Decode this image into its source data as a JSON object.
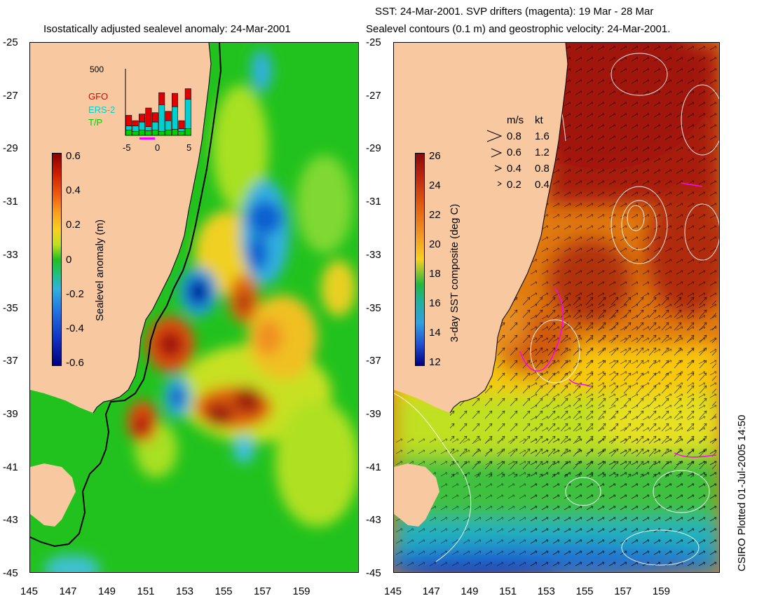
{
  "left_panel": {
    "title": "Isostatically adjusted sealevel anomaly: 24-Mar-2001",
    "lat_ticks": [
      "-25",
      "-27",
      "-29",
      "-31",
      "-33",
      "-35",
      "-37",
      "-39",
      "-41",
      "-43",
      "-45"
    ],
    "lon_ticks": [
      "145",
      "147",
      "149",
      "151",
      "153",
      "155",
      "157",
      "159"
    ],
    "colorbar": {
      "label": "Sealevel anomaly (m)",
      "ticks": [
        "0.6",
        "0.4",
        "0.2",
        "0",
        "-0.2",
        "-0.4",
        "-0.6"
      ]
    },
    "inset": {
      "ymax_label": "500",
      "legend": [
        "GFO",
        "ERS-2",
        "T/P"
      ],
      "legend_colors": [
        "#e00000",
        "#00d0d0",
        "#00d000"
      ],
      "x_ticks": [
        "-5",
        "0",
        "5"
      ],
      "bars": [
        {
          "tp": 40,
          "ers": 30,
          "gfo": 80
        },
        {
          "tp": 30,
          "ers": 40,
          "gfo": 40
        },
        {
          "tp": 40,
          "ers": 60,
          "gfo": 60
        },
        {
          "tp": 35,
          "ers": 30,
          "gfo": 140
        },
        {
          "tp": 40,
          "ers": 60,
          "gfo": 70
        },
        {
          "tp": 30,
          "ers": 200,
          "gfo": 90
        },
        {
          "tp": 40,
          "ers": 70,
          "gfo": 70
        },
        {
          "tp": 45,
          "ers": 170,
          "gfo": 100
        },
        {
          "tp": 30,
          "ers": 20,
          "gfo": 60
        },
        {
          "tp": 50,
          "ers": 220,
          "gfo": 80
        }
      ]
    }
  },
  "right_panel": {
    "title_line1": "SST: 24-Mar-2001. SVP drifters (magenta): 19 Mar - 28 Mar",
    "title_line2": "Sealevel contours (0.1 m) and geostrophic velocity: 24-Mar-2001.",
    "lat_ticks": [
      "-25",
      "-27",
      "-29",
      "-31",
      "-33",
      "-35",
      "-37",
      "-39",
      "-41",
      "-43",
      "-45"
    ],
    "lon_ticks": [
      "145",
      "147",
      "149",
      "151",
      "153",
      "155",
      "157",
      "159"
    ],
    "colorbar": {
      "label": "3-day SST composite (deg C)",
      "ticks": [
        "26",
        "24",
        "22",
        "20",
        "18",
        "16",
        "14",
        "12"
      ]
    },
    "velocity_legend": {
      "header_ms": "m/s",
      "header_kt": "kt",
      "rows": [
        {
          "ms": "0.8",
          "kt": "1.6"
        },
        {
          "ms": "0.6",
          "kt": "1.2"
        },
        {
          "ms": "0.4",
          "kt": "0.8"
        },
        {
          "ms": "0.2",
          "kt": "0.4"
        }
      ]
    }
  },
  "credit": "CSIRO Plotted 01-Jul-2005 14:50",
  "colors": {
    "land": "#f8c9a0",
    "ocean_zero": "#20c020",
    "coast": "#000000",
    "contour": "#ffffff",
    "drifter": "#ff00ff"
  }
}
